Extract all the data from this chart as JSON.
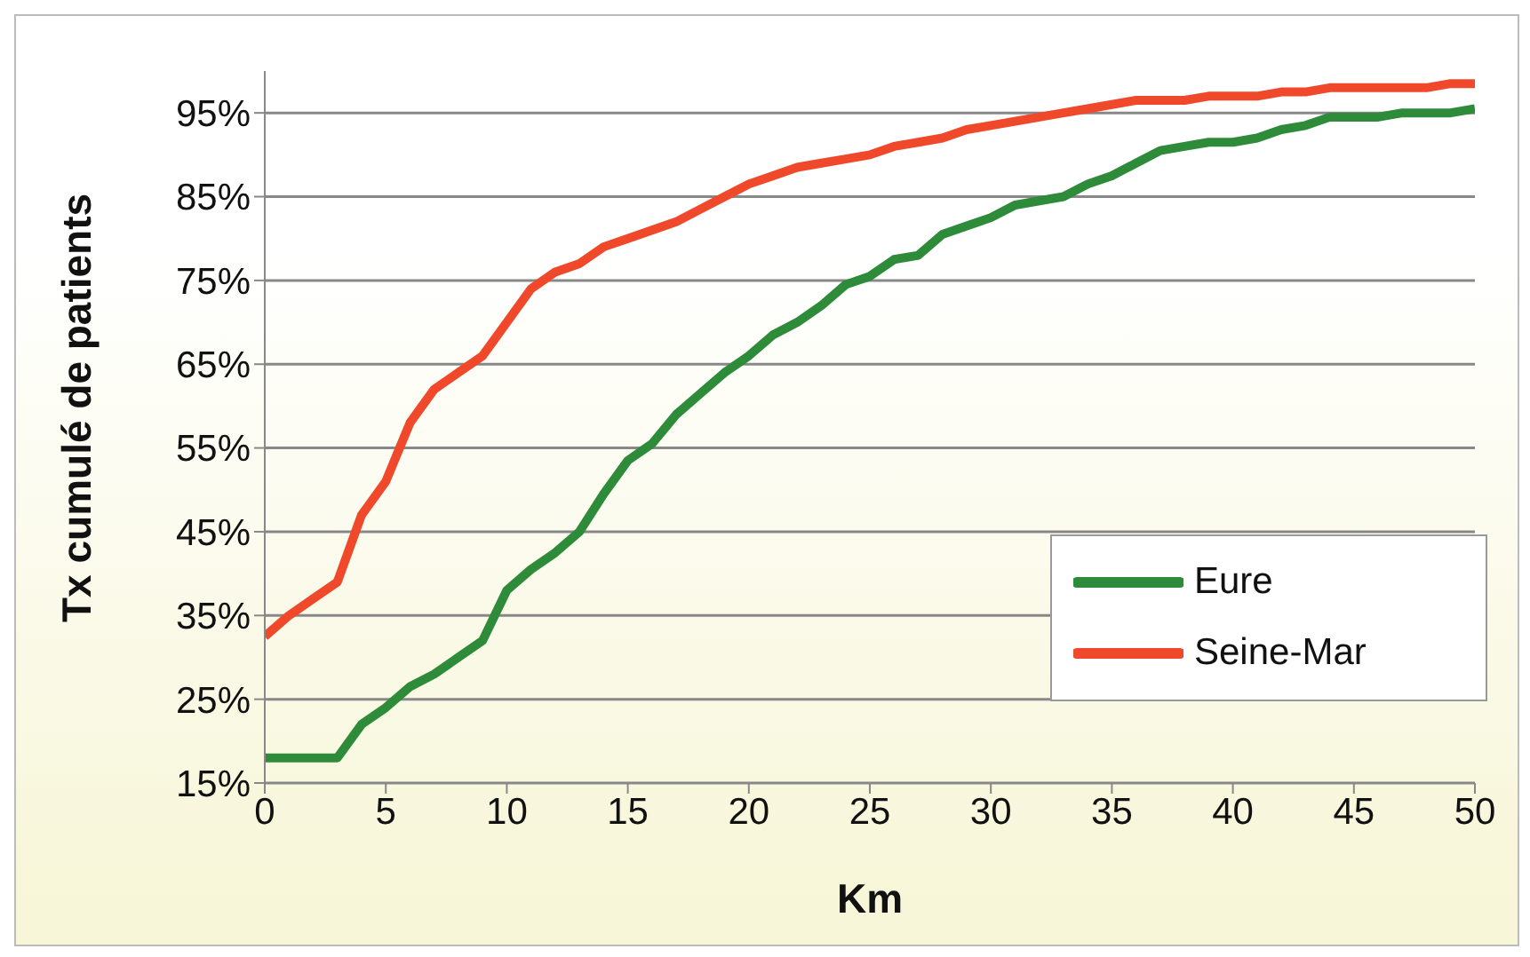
{
  "chart_data": {
    "type": "line",
    "xlabel": "Km",
    "ylabel": "Tx cumulé de patients",
    "x": [
      0,
      1,
      2,
      3,
      4,
      5,
      6,
      7,
      8,
      9,
      10,
      11,
      12,
      13,
      14,
      15,
      16,
      17,
      18,
      19,
      20,
      21,
      22,
      23,
      24,
      25,
      26,
      27,
      28,
      29,
      30,
      31,
      32,
      33,
      34,
      35,
      36,
      37,
      38,
      39,
      40,
      41,
      42,
      43,
      44,
      45,
      46,
      47,
      48,
      49,
      50
    ],
    "series": [
      {
        "name": "Eure",
        "color": "#2e8b3a",
        "values": [
          18,
          18,
          18,
          18,
          22,
          24,
          26.5,
          28,
          30,
          32,
          38,
          40.5,
          42.5,
          45,
          49.5,
          53.5,
          55.5,
          59,
          61.5,
          64,
          66,
          68.5,
          70,
          72,
          74.5,
          75.5,
          77.5,
          78,
          80.5,
          81.5,
          82.5,
          84,
          84.5,
          85,
          86.5,
          87.5,
          89,
          90.5,
          91,
          91.5,
          91.5,
          92,
          93,
          93.5,
          94.5,
          94.5,
          94.5,
          95,
          95,
          95,
          95.5
        ]
      },
      {
        "name": "Seine-Mar",
        "color": "#f0482a",
        "values": [
          32.5,
          35,
          37,
          39,
          47,
          51,
          58,
          62,
          64,
          66,
          70,
          74,
          76,
          77,
          79,
          80,
          81,
          82,
          83.5,
          85,
          86.5,
          87.5,
          88.5,
          89,
          89.5,
          90,
          91,
          91.5,
          92,
          93,
          93.5,
          94,
          94.5,
          95,
          95.5,
          96,
          96.5,
          96.5,
          96.5,
          97,
          97,
          97,
          97.5,
          97.5,
          98,
          98,
          98,
          98,
          98,
          98.5,
          98.5
        ]
      }
    ],
    "xlim": [
      0,
      50
    ],
    "xticks": [
      0,
      5,
      10,
      15,
      20,
      25,
      30,
      35,
      40,
      45,
      50
    ],
    "ylim": [
      15,
      100
    ],
    "yticks": [
      {
        "value": 15,
        "label": "15%"
      },
      {
        "value": 25,
        "label": "25%"
      },
      {
        "value": 35,
        "label": "35%"
      },
      {
        "value": 45,
        "label": "45%"
      },
      {
        "value": 55,
        "label": "55%"
      },
      {
        "value": 65,
        "label": "65%"
      },
      {
        "value": 75,
        "label": "75%"
      },
      {
        "value": 85,
        "label": "85%"
      },
      {
        "value": 95,
        "label": "95%"
      }
    ],
    "grid": "y",
    "legend": "bottom right",
    "marker": "none",
    "line_style": "solid"
  }
}
